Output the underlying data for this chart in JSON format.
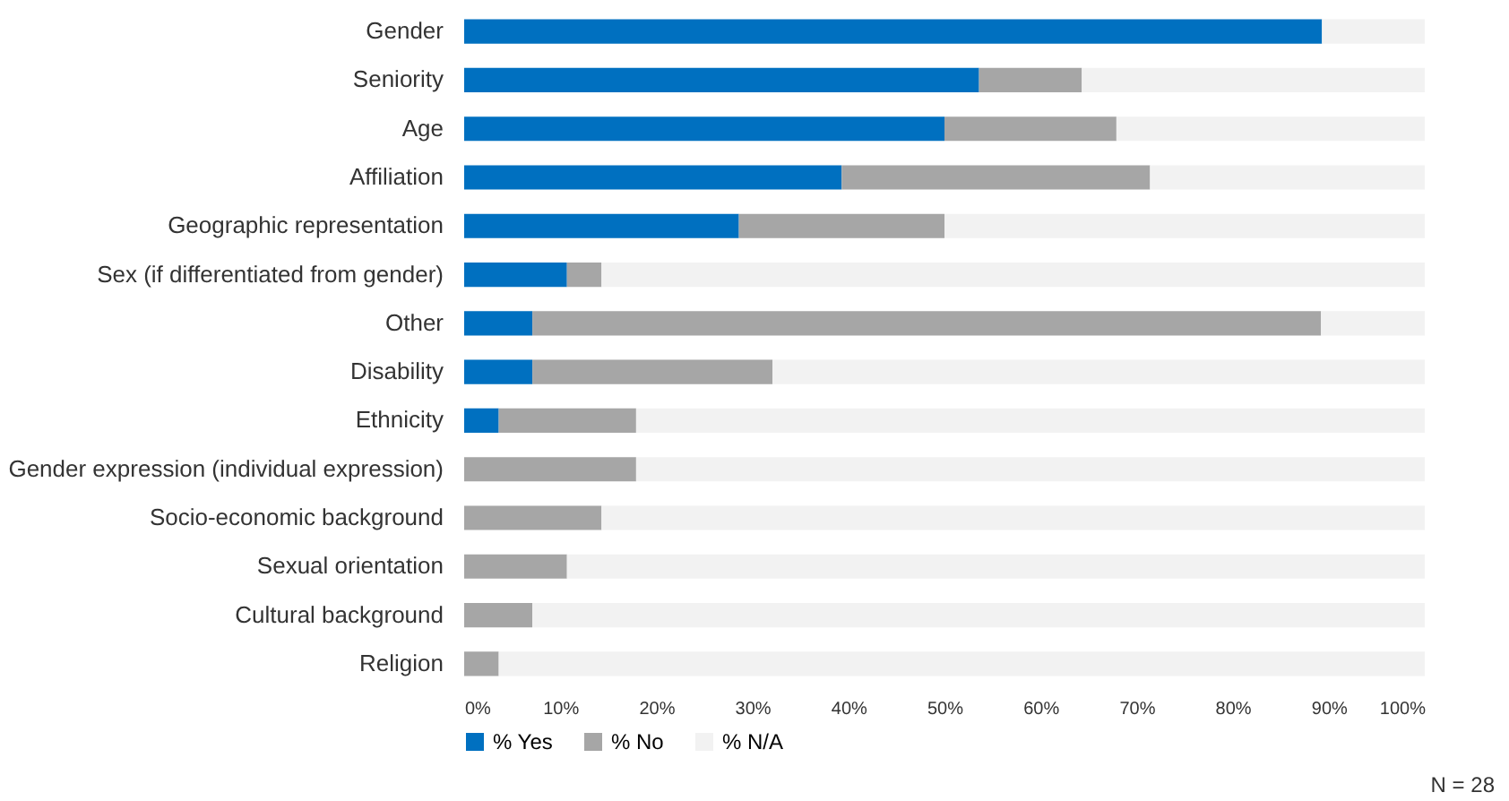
{
  "chart_data": {
    "type": "bar",
    "orientation": "horizontal",
    "stacked": true,
    "legend": "bottom",
    "grid": false,
    "categories": [
      "Gender",
      "Seniority",
      "Age",
      "Affiliation",
      "Geographic representation",
      "Sex (if differentiated from gender)",
      "Other",
      "Disability",
      "Ethnicity",
      "Gender expression (individual expression)",
      "Socio-economic background",
      "Sexual orientation",
      "Cultural background",
      "Religion"
    ],
    "series": [
      {
        "name": "% Yes",
        "color": "#0070c0",
        "values": [
          89.3,
          53.6,
          50,
          39.3,
          28.6,
          10.7,
          7.1,
          7.1,
          3.6,
          0,
          0,
          0,
          0,
          0
        ]
      },
      {
        "name": "% No",
        "color": "#a6a6a6",
        "values": [
          0,
          10.7,
          17.9,
          32.1,
          21.4,
          3.6,
          82.1,
          25,
          14.3,
          17.9,
          14.3,
          10.7,
          7.1,
          3.6
        ]
      },
      {
        "name": "% N/A",
        "color": "#f2f2f2",
        "values": [
          10.7,
          35.7,
          32.1,
          28.6,
          50,
          85.7,
          10.8,
          67.9,
          82.1,
          82.1,
          85.7,
          89.3,
          92.9,
          96.4
        ]
      }
    ],
    "xlim": [
      0,
      100
    ],
    "xticks": [
      {
        "value": 0,
        "label": "0%"
      },
      {
        "value": 10,
        "label": "10%"
      },
      {
        "value": 20,
        "label": "20%"
      },
      {
        "value": 30,
        "label": "30%"
      },
      {
        "value": 40,
        "label": "40%"
      },
      {
        "value": 50,
        "label": "50%"
      },
      {
        "value": 60,
        "label": "60%"
      },
      {
        "value": 70,
        "label": "70%"
      },
      {
        "value": 80,
        "label": "80%"
      },
      {
        "value": 90,
        "label": "90%"
      },
      {
        "value": 100,
        "label": "100%"
      }
    ],
    "annotations": [
      "N = 28"
    ]
  }
}
